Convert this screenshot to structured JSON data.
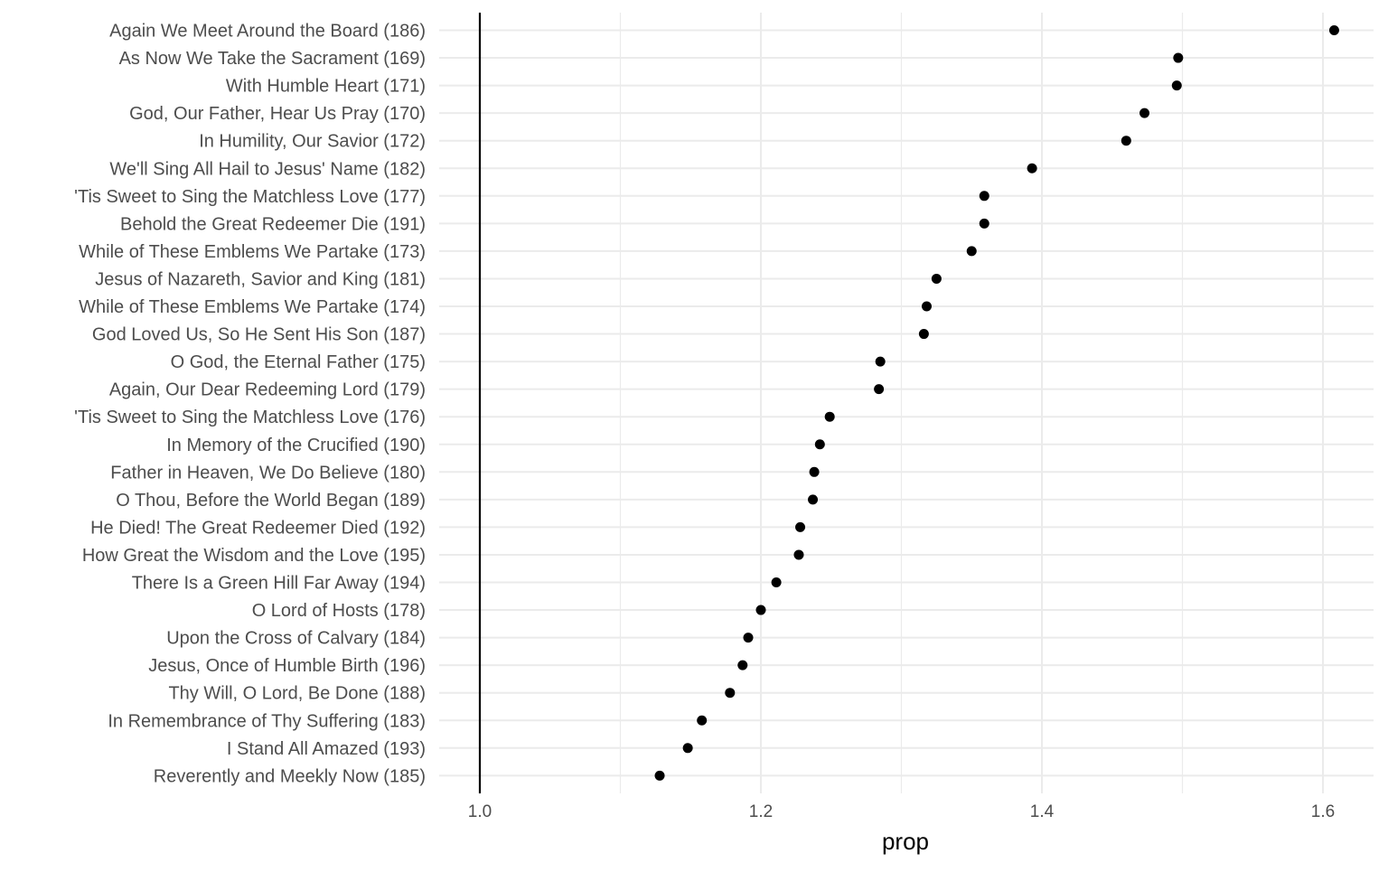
{
  "chart_data": {
    "type": "scatter",
    "xlabel": "prop",
    "ylabel": "",
    "title": "",
    "xlim": [
      0.955,
      1.64
    ],
    "xticks": [
      1.0,
      1.2,
      1.4,
      1.6
    ],
    "xtick_labels": [
      "1.0",
      "1.2",
      "1.4",
      "1.6"
    ],
    "reference_line_x": 1.0,
    "grid": true,
    "legend": "none",
    "categories": [
      "Again We Meet Around the Board (186)",
      "As Now We Take the Sacrament (169)",
      "With Humble Heart (171)",
      "God, Our Father, Hear Us Pray (170)",
      "In Humility, Our Savior (172)",
      "We'll Sing All Hail to Jesus' Name (182)",
      "'Tis Sweet to Sing the Matchless Love (177)",
      "Behold the Great Redeemer Die (191)",
      "While of These Emblems We Partake (173)",
      "Jesus of Nazareth, Savior and King (181)",
      "While of These Emblems We Partake (174)",
      "God Loved Us, So He Sent His Son (187)",
      "O God, the Eternal Father (175)",
      "Again, Our Dear Redeeming Lord (179)",
      "'Tis Sweet to Sing the Matchless Love (176)",
      "In Memory of the Crucified (190)",
      "Father in Heaven, We Do Believe (180)",
      "O Thou, Before the World Began (189)",
      "He Died! The Great Redeemer Died (192)",
      "How Great the Wisdom and the Love (195)",
      "There Is a Green Hill Far Away (194)",
      "O Lord of Hosts (178)",
      "Upon the Cross of Calvary (184)",
      "Jesus, Once of Humble Birth (196)",
      "Thy Will, O Lord, Be Done (188)",
      "In Remembrance of Thy Suffering (183)",
      "I Stand All Amazed (193)",
      "Reverently and Meekly Now (185)"
    ],
    "values": [
      1.608,
      1.497,
      1.496,
      1.473,
      1.46,
      1.393,
      1.359,
      1.359,
      1.35,
      1.325,
      1.318,
      1.316,
      1.285,
      1.284,
      1.249,
      1.242,
      1.238,
      1.237,
      1.228,
      1.227,
      1.211,
      1.2,
      1.191,
      1.187,
      1.178,
      1.158,
      1.148,
      1.128
    ],
    "colors": {
      "point": "#000000",
      "grid": "#ebebeb",
      "reference_line": "#000000"
    }
  }
}
